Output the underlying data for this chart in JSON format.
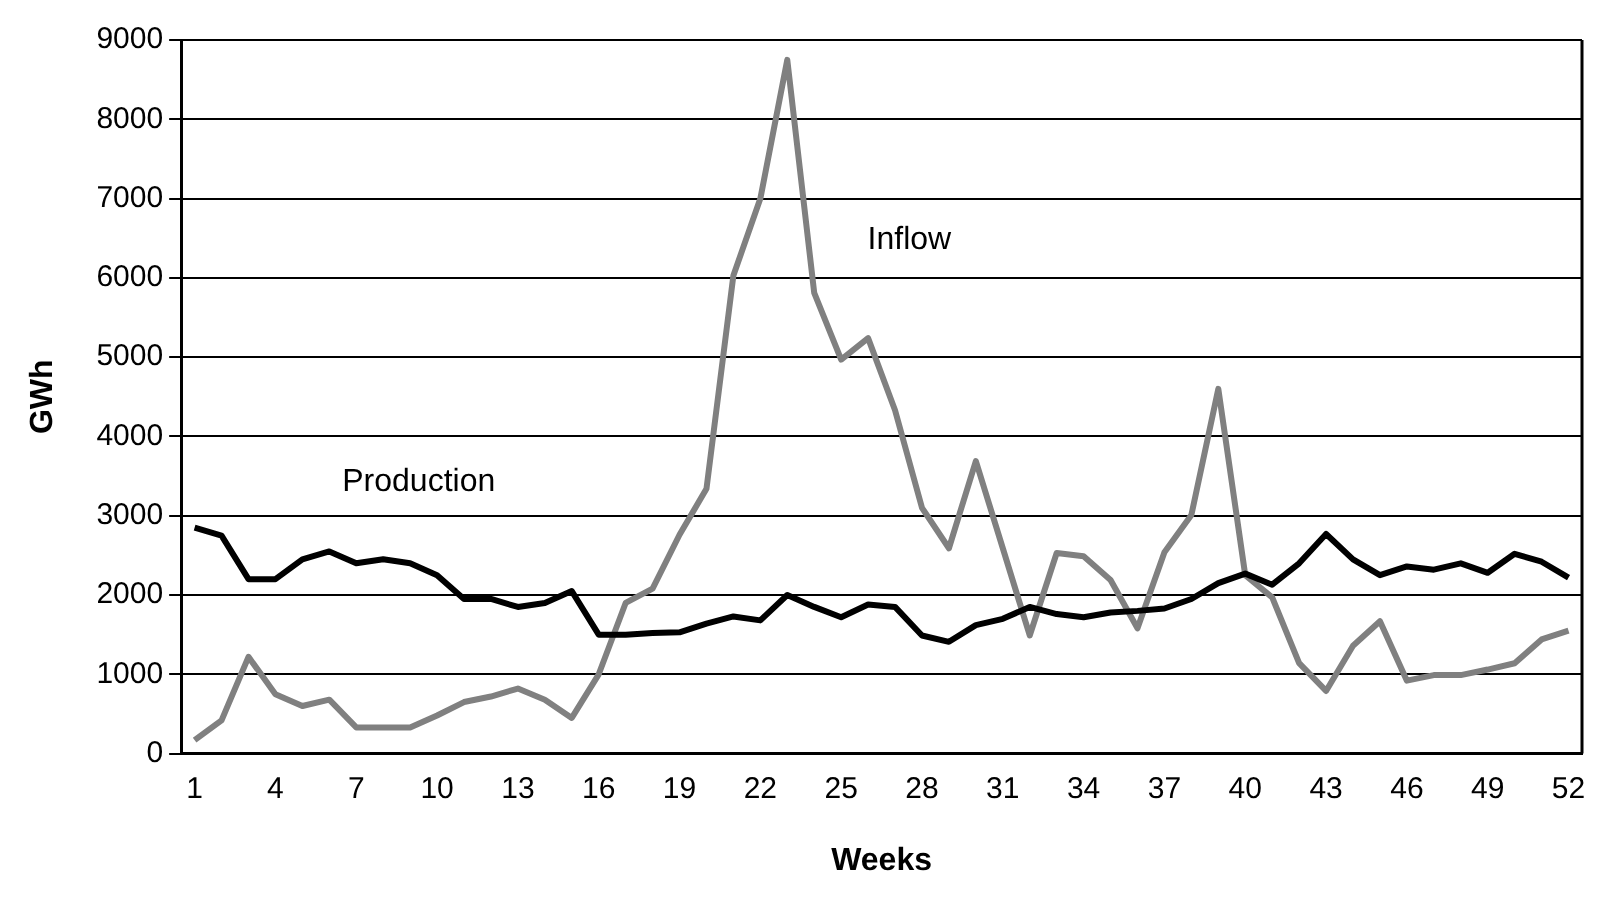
{
  "chart_data": {
    "type": "line",
    "xlabel": "Weeks",
    "ylabel": "GWh",
    "categories": [
      "1",
      null,
      null,
      "4",
      null,
      null,
      "7",
      null,
      null,
      "10",
      null,
      null,
      "13",
      null,
      null,
      "16",
      null,
      null,
      "19",
      null,
      null,
      "22",
      null,
      null,
      "25",
      null,
      null,
      "28",
      null,
      null,
      "31",
      null,
      null,
      "34",
      null,
      null,
      "37",
      null,
      null,
      "40",
      null,
      null,
      "43",
      null,
      null,
      "46",
      null,
      null,
      "49",
      null,
      null,
      "52"
    ],
    "series": [
      {
        "name": "Production",
        "color": "#000000",
        "values": [
          2850,
          2750,
          2200,
          2200,
          2450,
          2550,
          2400,
          2450,
          2400,
          2250,
          1950,
          1950,
          1850,
          1900,
          2050,
          1500,
          1500,
          1520,
          1530,
          1640,
          1730,
          1680,
          2000,
          1850,
          1720,
          1880,
          1850,
          1490,
          1410,
          1620,
          1700,
          1850,
          1760,
          1720,
          1780,
          1800,
          1830,
          1950,
          2150,
          2270,
          2130,
          2400,
          2770,
          2450,
          2250,
          2360,
          2320,
          2400,
          2280,
          2520,
          2420,
          2220
        ]
      },
      {
        "name": "Inflow",
        "color": "#808080",
        "values": [
          170,
          420,
          1220,
          750,
          600,
          680,
          330,
          330,
          330,
          480,
          650,
          720,
          820,
          680,
          450,
          1000,
          1900,
          2080,
          2760,
          3340,
          6030,
          7000,
          8750,
          5810,
          4970,
          5240,
          4330,
          3100,
          2590,
          3690,
          2590,
          1490,
          2530,
          2490,
          2190,
          1580,
          2540,
          3010,
          4600,
          2250,
          1970,
          1140,
          790,
          1360,
          1670,
          920,
          990,
          990,
          1060,
          1140,
          1440,
          1550
        ]
      }
    ],
    "ylim": [
      0,
      9000
    ],
    "yticks": [
      0,
      1000,
      2000,
      3000,
      4000,
      5000,
      6000,
      7000,
      8000,
      9000
    ],
    "grid": "y",
    "legend": false,
    "marker": "none",
    "line_style": "solid"
  }
}
